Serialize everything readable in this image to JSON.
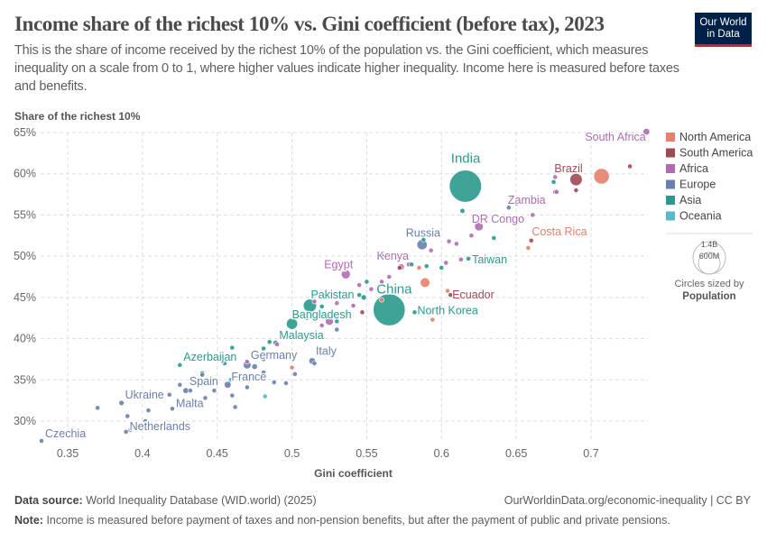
{
  "header": {
    "title": "Income share of the richest 10% vs. Gini coefficient (before tax), 2023",
    "subtitle": "This is the share of income received by the richest 10% of the population vs. the Gini coefficient, which measures inequality on a scale from 0 to 1, where higher values indicate higher inequality. Income here is measured before taxes and benefits.",
    "logo": "Our World in Data"
  },
  "footer": {
    "source_label": "Data source:",
    "source": "World Inequality Database (WID.world) (2025)",
    "url": "OurWorldinData.org/economic-inequality | CC BY",
    "note_label": "Note:",
    "note": "Income is measured before payment of taxes and non-pension benefits, but after the payment of public and private pensions."
  },
  "chart_data": {
    "type": "scatter",
    "title": "Income share of the richest 10% vs. Gini coefficient (before tax), 2023",
    "xlabel": "Gini coefficient",
    "ylabel": "Share of the richest 10%",
    "xlim": [
      0.33,
      0.735
    ],
    "ylim": [
      27.5,
      65
    ],
    "xticks": [
      0.35,
      0.4,
      0.45,
      0.5,
      0.55,
      0.6,
      0.65,
      0.7
    ],
    "xtick_labels": [
      "0.35",
      "0.4",
      "0.45",
      "0.5",
      "0.55",
      "0.6",
      "0.65",
      "0.7"
    ],
    "yticks": [
      30,
      35,
      40,
      45,
      50,
      55,
      60,
      65
    ],
    "ytick_labels": [
      "30%",
      "35%",
      "40%",
      "45%",
      "50%",
      "55%",
      "60%",
      "65%"
    ],
    "grid": true,
    "legend_placement": "right",
    "colors": {
      "North America": "#e5816d",
      "South America": "#9e4a55",
      "Africa": "#b06bb3",
      "Europe": "#6a7fad",
      "Asia": "#2a9a8d",
      "Oceania": "#5bb8c6"
    },
    "legend": [
      "North America",
      "South America",
      "Africa",
      "Europe",
      "Asia",
      "Oceania"
    ],
    "size_legend": {
      "title": "Circles sized by",
      "variable": "Population",
      "values": [
        "1.4B",
        "600M"
      ]
    },
    "labeled_points": [
      {
        "name": "South Africa",
        "x": 0.737,
        "y": 65.1,
        "region": "Africa",
        "pop": 63
      },
      {
        "name": "Brazil",
        "x": 0.69,
        "y": 59.3,
        "region": "South America",
        "pop": 211
      },
      {
        "name": "India",
        "x": 0.616,
        "y": 58.5,
        "region": "Asia",
        "pop": 1430
      },
      {
        "name": "Zambia",
        "x": 0.677,
        "y": 57.8,
        "region": "Africa",
        "pop": 20
      },
      {
        "name": "DR Congo",
        "x": 0.625,
        "y": 53.6,
        "region": "Africa",
        "pop": 105
      },
      {
        "name": "Russia",
        "x": 0.587,
        "y": 51.4,
        "region": "Europe",
        "pop": 144
      },
      {
        "name": "Costa Rica",
        "x": 0.658,
        "y": 51.0,
        "region": "North America",
        "pop": 5
      },
      {
        "name": "Taiwan",
        "x": 0.618,
        "y": 49.7,
        "region": "Asia",
        "pop": 23
      },
      {
        "name": "Kenya",
        "x": 0.573,
        "y": 48.7,
        "region": "Africa",
        "pop": 55
      },
      {
        "name": "Egypt",
        "x": 0.536,
        "y": 47.8,
        "region": "Africa",
        "pop": 113
      },
      {
        "name": "China",
        "x": 0.565,
        "y": 43.5,
        "region": "Asia",
        "pop": 1410
      },
      {
        "name": "North Korea",
        "x": 0.582,
        "y": 43.2,
        "region": "Asia",
        "pop": 26
      },
      {
        "name": "Ecuador",
        "x": 0.606,
        "y": 45.3,
        "region": "South America",
        "pop": 18
      },
      {
        "name": "Pakistan",
        "x": 0.512,
        "y": 44.0,
        "region": "Asia",
        "pop": 240
      },
      {
        "name": "Bangladesh",
        "x": 0.5,
        "y": 41.8,
        "region": "Asia",
        "pop": 173
      },
      {
        "name": "Malaysia",
        "x": 0.489,
        "y": 39.5,
        "region": "Asia",
        "pop": 34
      },
      {
        "name": "Italy",
        "x": 0.5135,
        "y": 37.3,
        "region": "Europe",
        "pop": 59
      },
      {
        "name": "Germany",
        "x": 0.47,
        "y": 36.8,
        "region": "Europe",
        "pop": 84
      },
      {
        "name": "Azerbaijan",
        "x": 0.425,
        "y": 36.8,
        "region": "Asia",
        "pop": 10
      },
      {
        "name": "France",
        "x": 0.457,
        "y": 34.4,
        "region": "Europe",
        "pop": 66
      },
      {
        "name": "Spain",
        "x": 0.429,
        "y": 33.7,
        "region": "Europe",
        "pop": 48
      },
      {
        "name": "Malta",
        "x": 0.42,
        "y": 31.5,
        "region": "Europe",
        "pop": 1
      },
      {
        "name": "Ukraine",
        "x": 0.386,
        "y": 32.2,
        "region": "Europe",
        "pop": 38
      },
      {
        "name": "Netherlands",
        "x": 0.389,
        "y": 28.7,
        "region": "Europe",
        "pop": 18
      },
      {
        "name": "Czechia",
        "x": 0.3325,
        "y": 27.6,
        "region": "Europe",
        "pop": 11
      }
    ],
    "other_points": [
      [
        0.707,
        59.7,
        "North America",
        335
      ],
      [
        0.589,
        46.8,
        "North America",
        128
      ],
      [
        0.5,
        36.5,
        "North America",
        8
      ],
      [
        0.594,
        42.3,
        "North America",
        4
      ],
      [
        0.56,
        44.7,
        "North America",
        6
      ],
      [
        0.604,
        45.8,
        "North America",
        5
      ],
      [
        0.585,
        48.6,
        "North America",
        3
      ],
      [
        0.726,
        60.9,
        "South America",
        20
      ],
      [
        0.69,
        58.0,
        "South America",
        12
      ],
      [
        0.66,
        51.9,
        "South America",
        7
      ],
      [
        0.547,
        43.2,
        "South America",
        10
      ],
      [
        0.572,
        48.6,
        "South America",
        5
      ],
      [
        0.676,
        59.6,
        "Africa",
        30
      ],
      [
        0.676,
        57.8,
        "Africa",
        25
      ],
      [
        0.661,
        55.0,
        "Africa",
        6
      ],
      [
        0.62,
        52.5,
        "Africa",
        20
      ],
      [
        0.605,
        51.8,
        "Africa",
        8
      ],
      [
        0.61,
        51.5,
        "Africa",
        8
      ],
      [
        0.593,
        50.7,
        "Africa",
        30
      ],
      [
        0.578,
        49.0,
        "Africa",
        10
      ],
      [
        0.603,
        49.2,
        "Africa",
        5
      ],
      [
        0.613,
        49.6,
        "Africa",
        4
      ],
      [
        0.56,
        46.9,
        "Africa",
        15
      ],
      [
        0.553,
        46.0,
        "Africa",
        12
      ],
      [
        0.541,
        44.0,
        "Africa",
        8
      ],
      [
        0.515,
        44.5,
        "Africa",
        6
      ],
      [
        0.53,
        44.3,
        "Africa",
        10
      ],
      [
        0.525,
        42.1,
        "Africa",
        90
      ],
      [
        0.52,
        41.6,
        "Africa",
        6
      ],
      [
        0.49,
        39.3,
        "Africa",
        5
      ],
      [
        0.47,
        37.2,
        "Africa",
        4
      ],
      [
        0.545,
        46.5,
        "Africa",
        9
      ],
      [
        0.565,
        47.5,
        "Africa",
        12
      ],
      [
        0.675,
        59.0,
        "Asia",
        15
      ],
      [
        0.647,
        57.1,
        "Asia",
        4
      ],
      [
        0.65,
        56.4,
        "Asia",
        4
      ],
      [
        0.614,
        55.5,
        "Asia",
        35
      ],
      [
        0.635,
        52.2,
        "Asia",
        30
      ],
      [
        0.588,
        52.0,
        "Asia",
        12
      ],
      [
        0.58,
        49.0,
        "Asia",
        5
      ],
      [
        0.59,
        48.8,
        "Asia",
        5
      ],
      [
        0.6,
        48.6,
        "Asia",
        4
      ],
      [
        0.56,
        50.1,
        "Asia",
        3
      ],
      [
        0.55,
        46.9,
        "Asia",
        5
      ],
      [
        0.545,
        45.3,
        "Asia",
        8
      ],
      [
        0.548,
        45.0,
        "Asia",
        40
      ],
      [
        0.52,
        43.9,
        "Asia",
        6
      ],
      [
        0.53,
        42.1,
        "Asia",
        4
      ],
      [
        0.481,
        38.8,
        "Asia",
        4
      ],
      [
        0.485,
        39.6,
        "Asia",
        6
      ],
      [
        0.5,
        40.3,
        "Asia",
        30
      ],
      [
        0.51,
        42.5,
        "Asia",
        5
      ],
      [
        0.455,
        37.0,
        "Asia",
        15
      ],
      [
        0.44,
        35.8,
        "Asia",
        4
      ],
      [
        0.46,
        38.9,
        "Asia",
        3
      ],
      [
        0.645,
        55.9,
        "Europe",
        4
      ],
      [
        0.515,
        37.0,
        "Europe",
        5
      ],
      [
        0.53,
        41.1,
        "Europe",
        4
      ],
      [
        0.481,
        37.5,
        "Europe",
        5
      ],
      [
        0.475,
        36.6,
        "Europe",
        45
      ],
      [
        0.44,
        35.6,
        "Europe",
        4
      ],
      [
        0.425,
        34.4,
        "Europe",
        4
      ],
      [
        0.432,
        33.7,
        "Europe",
        6
      ],
      [
        0.418,
        33.2,
        "Europe",
        4
      ],
      [
        0.37,
        31.6,
        "Europe",
        4
      ],
      [
        0.39,
        30.6,
        "Europe",
        4
      ],
      [
        0.402,
        30.0,
        "Europe",
        4
      ],
      [
        0.404,
        31.3,
        "Europe",
        4
      ],
      [
        0.392,
        28.9,
        "Europe",
        3
      ],
      [
        0.442,
        32.8,
        "Europe",
        4
      ],
      [
        0.462,
        31.7,
        "Europe",
        4
      ],
      [
        0.488,
        34.7,
        "Europe",
        4
      ],
      [
        0.496,
        34.6,
        "Europe",
        4
      ],
      [
        0.47,
        34.1,
        "Europe",
        4
      ],
      [
        0.46,
        33.1,
        "Europe",
        4
      ],
      [
        0.502,
        35.7,
        "Europe",
        4
      ],
      [
        0.481,
        35.9,
        "Europe",
        4
      ],
      [
        0.448,
        33.7,
        "Europe",
        5
      ],
      [
        0.482,
        33.0,
        "Oceania",
        26
      ],
      [
        0.459,
        35.0,
        "Oceania",
        5
      ]
    ]
  }
}
